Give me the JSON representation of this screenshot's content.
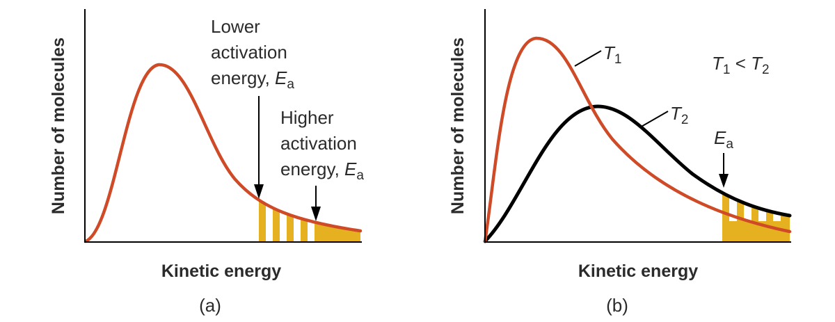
{
  "panel_a": {
    "y_axis_label": "Number of molecules",
    "x_axis_label": "Kinetic energy",
    "caption": "(a)",
    "lower_label": {
      "line1": "Lower",
      "line2": "activation",
      "line3_prefix": "energy, ",
      "var": "E",
      "sub": "a"
    },
    "higher_label": {
      "line1": "Higher",
      "line2": "activation",
      "line3_prefix": "energy, ",
      "var": "E",
      "sub": "a"
    }
  },
  "panel_b": {
    "y_axis_label": "Number of molecules",
    "x_axis_label": "Kinetic energy",
    "caption": "(b)",
    "t1_label": {
      "var": "T",
      "sub": "1"
    },
    "t2_label": {
      "var": "T",
      "sub": "2"
    },
    "relation": {
      "left_var": "T",
      "left_sub": "1",
      "op": " < ",
      "right_var": "T",
      "right_sub": "2"
    },
    "ea_label": {
      "var": "E",
      "sub": "a"
    }
  },
  "colors": {
    "curve_red": "#cf4a26",
    "curve_black": "#000000",
    "shading": "#e6b120"
  }
}
